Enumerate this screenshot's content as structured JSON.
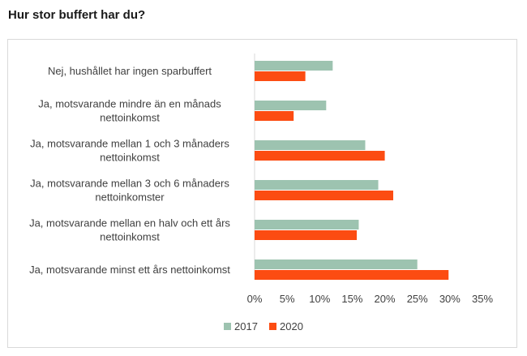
{
  "title": "Hur stor buffert har du?",
  "chart_data": {
    "type": "bar",
    "orientation": "horizontal",
    "title": "",
    "xlabel": "",
    "ylabel": "",
    "xlim": [
      0,
      35
    ],
    "ticks": [
      "0%",
      "5%",
      "10%",
      "15%",
      "20%",
      "25%",
      "30%",
      "35%"
    ],
    "categories": [
      [
        "Nej, hushållet har ingen sparbuffert"
      ],
      [
        "Ja, motsvarande mindre än en månads",
        "nettoinkomst"
      ],
      [
        "Ja, motsvarande mellan 1 och 3 månaders",
        "nettoinkomst"
      ],
      [
        "Ja, motsvarande mellan 3 och 6 månaders",
        "nettoinkomster"
      ],
      [
        "Ja, motsvarande mellan en halv och ett års",
        "nettoinkomst"
      ],
      [
        "Ja, motsvarande minst ett års nettoinkomst"
      ]
    ],
    "series": [
      {
        "name": "2017",
        "color": "#9dc3b0",
        "values": [
          12,
          11,
          17,
          19,
          16,
          25
        ]
      },
      {
        "name": "2020",
        "color": "#fc4c12",
        "values": [
          7.8,
          6,
          20,
          21.3,
          15.7,
          29.8
        ]
      }
    ],
    "grid": false,
    "legend": "bottom"
  }
}
